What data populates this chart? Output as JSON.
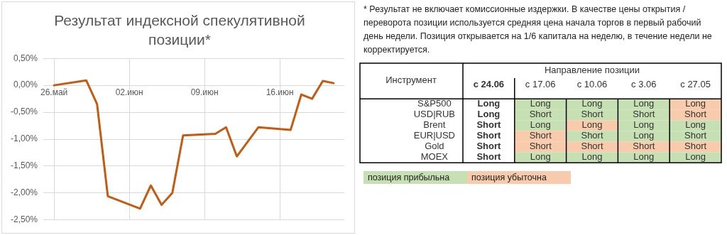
{
  "chart_data": [
    {
      "type": "line",
      "title": "Результат индексной спекулятивной позиции*",
      "x": [
        "--05-26",
        "--05-29",
        "--05-30",
        "--05-31",
        "--06-03",
        "--06-04",
        "--06-05",
        "--06-06",
        "--06-07",
        "--06-10",
        "--06-11",
        "--06-12",
        "--06-14",
        "--06-17",
        "--06-18",
        "--06-19",
        "--06-20",
        "--06-21"
      ],
      "series": [
        {
          "color": "#c55a11",
          "values": [
            0.0,
            0.09,
            -0.35,
            -2.06,
            -2.29,
            -1.86,
            -2.22,
            -2.0,
            -0.93,
            -0.9,
            -0.78,
            -1.32,
            -0.78,
            -0.83,
            -0.17,
            -0.25,
            0.08,
            0.04
          ]
        }
      ],
      "xlim": [
        "--05-25",
        "--06-22"
      ],
      "xticks": [
        {
          "value": "--05-26",
          "label": "26.май"
        },
        {
          "value": "--06-02",
          "label": "02.июн"
        },
        {
          "value": "--06-09",
          "label": "09.июн"
        },
        {
          "value": "--06-16",
          "label": "16.июн"
        }
      ],
      "ylim": [
        -2.5,
        0.5
      ],
      "yticks": [
        {
          "value": 0.5,
          "label": "0,50%"
        },
        {
          "value": 0,
          "label": "0,00%"
        },
        {
          "value": -0.5,
          "label": "-0,50%"
        },
        {
          "value": -1,
          "label": "-1,00%"
        },
        {
          "value": -1.5,
          "label": "-1,50%"
        },
        {
          "value": -2,
          "label": "-2,00%"
        },
        {
          "value": -2.5,
          "label": "-2,50%"
        }
      ],
      "grid": true,
      "legend": false,
      "marker": "none",
      "line_style": "solid",
      "annotations": [
        "* Результат не включает комиссионные издержки. В качестве цены открытия / переворота позиции используется средняя цена начала торгов в первый рабочий день недели. Позиция открывается на 1/6 капитала на неделю, в течение недели не корректируется."
      ]
    },
    {
      "type": "other",
      "xlabel": "Направление позиции",
      "ylabel": "Инструмент",
      "categories": [
        "с 24.06",
        "с 17.06",
        "с 10.06",
        "с 3.06",
        "с 27.05"
      ],
      "y_categories": [
        "S&P500",
        "USD|RUB",
        "Brent",
        "EUR|USD",
        "Gold",
        "MOEX"
      ],
      "colors": [
        [
          null,
          "#c6e0b4",
          "#c6e0b4",
          "#c6e0b4",
          "#f8cbad"
        ],
        [
          null,
          "#c6e0b4",
          "#c6e0b4",
          "#c6e0b4",
          "#f8cbad"
        ],
        [
          null,
          "#c6e0b4",
          "#f8cbad",
          "#c6e0b4",
          "#c6e0b4"
        ],
        [
          null,
          "#f8cbad",
          "#c6e0b4",
          "#c6e0b4",
          "#c6e0b4"
        ],
        [
          null,
          "#f8cbad",
          "#f8cbad",
          "#f8cbad",
          "#f8cbad"
        ],
        [
          null,
          "#c6e0b4",
          "#c6e0b4",
          "#c6e0b4",
          "#c6e0b4"
        ]
      ],
      "cell_labels": [
        [
          "Long",
          "Long",
          "Long",
          "Long",
          "Long"
        ],
        [
          "Long",
          "Short",
          "Short",
          "Short",
          "Short"
        ],
        [
          "Short",
          "Long",
          "Long",
          "Long",
          "Long"
        ],
        [
          "Short",
          "Short",
          "Short",
          "Long",
          "Short"
        ],
        [
          "Short",
          "Short",
          "Short",
          "Short",
          "Short"
        ],
        [
          "Short",
          "Long",
          "Long",
          "Long",
          "Long"
        ]
      ],
      "annotations": [
        "позиция прибыльна",
        "позиция убыточна"
      ]
    }
  ]
}
